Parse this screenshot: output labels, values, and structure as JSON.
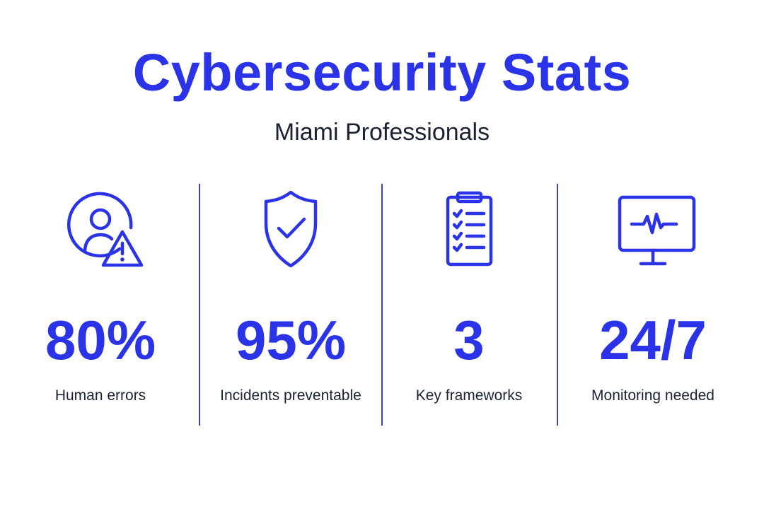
{
  "header": {
    "title": "Cybersecurity Stats",
    "subtitle": "Miami Professionals"
  },
  "accent_color": "#2a33e8",
  "text_color": "#1c2233",
  "stats": [
    {
      "icon": "user-warning-icon",
      "value": "80%",
      "label": "Human errors"
    },
    {
      "icon": "shield-check-icon",
      "value": "95%",
      "label": "Incidents preventable"
    },
    {
      "icon": "clipboard-checklist-icon",
      "value": "3",
      "label": "Key frameworks"
    },
    {
      "icon": "monitor-pulse-icon",
      "value": "24/7",
      "label": "Monitoring needed"
    }
  ]
}
